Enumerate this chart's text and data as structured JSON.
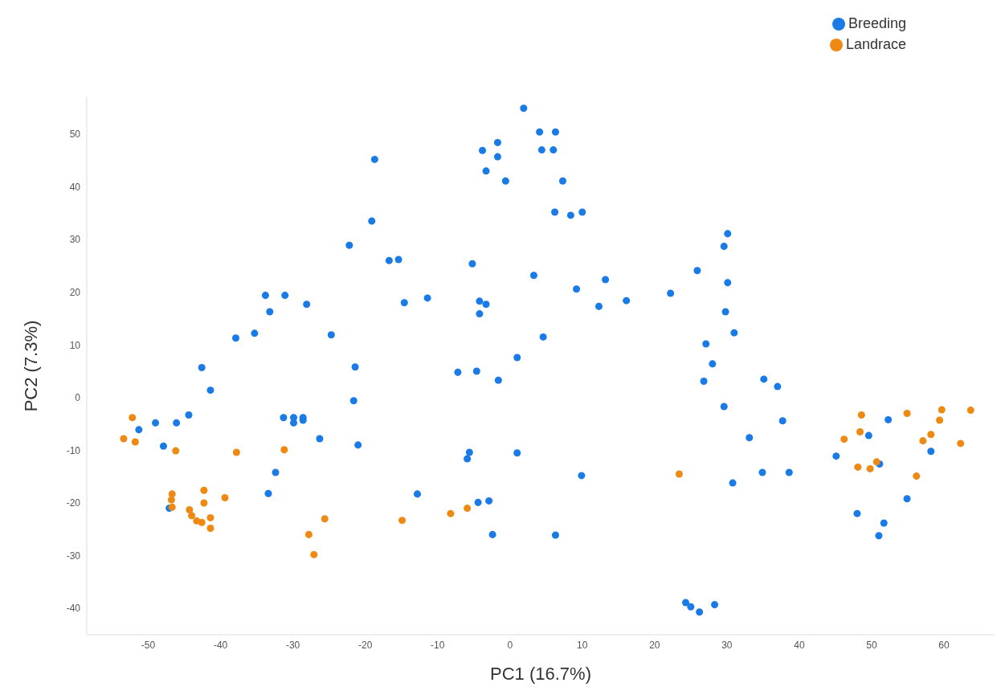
{
  "chart_data": {
    "type": "scatter",
    "xlabel": "PC1 (16.7%)",
    "ylabel": "PC2 (7.3%)",
    "xlim": [
      -58.5,
      67
    ],
    "ylim": [
      -45,
      57
    ],
    "xticks": [
      -50,
      -40,
      -30,
      -20,
      -10,
      0,
      10,
      20,
      30,
      40,
      50,
      60
    ],
    "yticks": [
      -40,
      -30,
      -20,
      -10,
      0,
      10,
      20,
      30,
      40,
      50
    ],
    "grid": false,
    "legend": "top right",
    "marker": "circle",
    "series": [
      {
        "name": "Breeding",
        "color": "#1a7be6",
        "x": [
          1.9,
          4.1,
          6.3,
          -3.8,
          -1.7,
          -1.7,
          -3.3,
          -0.6,
          4.4,
          6.0,
          7.3,
          -18.7,
          -19.1,
          -22.2,
          -16.7,
          -15.4,
          -5.2,
          -33.8,
          -31.1,
          -28.1,
          -33.2,
          -37.9,
          -35.3,
          -24.7,
          -14.6,
          -11.4,
          -4.2,
          -3.3,
          -4.2,
          -42.6,
          -21.4,
          -7.2,
          -4.6,
          -1.6,
          1.0,
          -41.4,
          3.3,
          6.2,
          8.4,
          10.0,
          30.1,
          29.6,
          25.9,
          13.2,
          9.2,
          12.3,
          16.1,
          22.2,
          30.1,
          29.8,
          31.0,
          4.6,
          27.1,
          28.0,
          26.8,
          35.1,
          37.0,
          -21.6,
          -44.4,
          -49.0,
          -46.1,
          -51.3,
          -47.9,
          -31.3,
          -29.9,
          -29.9,
          -28.6,
          -28.6,
          -26.3,
          -21.0,
          -32.4,
          -33.4,
          -12.8,
          -5.6,
          -5.9,
          1.0,
          -4.4,
          -2.9,
          -2.4,
          -47.1,
          9.9,
          6.3,
          29.6,
          37.7,
          33.1,
          34.9,
          38.6,
          30.8,
          24.3,
          25.0,
          26.2,
          28.3,
          52.3,
          49.6,
          45.1,
          51.1,
          58.2,
          54.9,
          48.0,
          51.7,
          51.0
        ],
        "values": [
          54.9,
          50.4,
          50.4,
          46.9,
          48.4,
          45.7,
          43.0,
          41.1,
          47.0,
          47.0,
          41.1,
          45.2,
          33.5,
          28.9,
          26.0,
          26.2,
          25.4,
          19.4,
          19.4,
          17.7,
          16.3,
          11.3,
          12.2,
          11.9,
          18.0,
          18.9,
          18.3,
          17.7,
          15.9,
          5.7,
          5.8,
          4.8,
          5.0,
          3.3,
          7.6,
          1.4,
          23.2,
          35.2,
          34.6,
          35.2,
          31.1,
          28.7,
          24.1,
          22.4,
          20.6,
          17.3,
          18.4,
          19.8,
          21.8,
          16.3,
          12.3,
          11.5,
          10.2,
          6.4,
          3.1,
          3.5,
          2.1,
          -0.6,
          -3.3,
          -4.8,
          -4.8,
          -6.1,
          -9.2,
          -3.8,
          -3.8,
          -4.8,
          -3.8,
          -4.3,
          -7.8,
          -9.0,
          -14.2,
          -18.2,
          -18.3,
          -10.4,
          -11.6,
          -10.5,
          -19.9,
          -19.6,
          -26.0,
          -21.0,
          -14.8,
          -26.1,
          -1.7,
          -4.4,
          -7.6,
          -14.2,
          -14.2,
          -16.2,
          -38.9,
          -39.7,
          -40.7,
          -39.3,
          -4.2,
          -7.2,
          -11.1,
          -12.6,
          -10.2,
          -19.2,
          -22.0,
          -23.8,
          -26.2
        ]
      },
      {
        "name": "Landrace",
        "color": "#ee8a14",
        "x": [
          -52.2,
          -53.4,
          -51.8,
          -46.2,
          -37.8,
          -31.2,
          -46.7,
          -46.8,
          -46.7,
          -42.3,
          -42.3,
          -39.4,
          -44.3,
          -44.0,
          -43.3,
          -42.6,
          -41.4,
          -41.4,
          -25.6,
          -27.8,
          -27.1,
          -14.9,
          -8.2,
          -5.9,
          23.4,
          48.6,
          48.4,
          46.2,
          48.1,
          49.8,
          50.7,
          54.9,
          59.7,
          59.4,
          58.2,
          57.1,
          63.7,
          62.3,
          56.2
        ],
        "values": [
          -3.8,
          -7.8,
          -8.4,
          -10.1,
          -10.4,
          -9.9,
          -18.3,
          -19.4,
          -20.8,
          -17.6,
          -20.0,
          -19.0,
          -21.3,
          -22.4,
          -23.4,
          -23.7,
          -22.8,
          -24.8,
          -23.0,
          -26.0,
          -29.8,
          -23.3,
          -22.0,
          -21.0,
          -14.5,
          -3.3,
          -6.5,
          -7.9,
          -13.2,
          -13.5,
          -12.2,
          -3.0,
          -2.3,
          -4.3,
          -7.0,
          -8.2,
          -2.4,
          -8.7,
          -14.9
        ]
      }
    ]
  }
}
